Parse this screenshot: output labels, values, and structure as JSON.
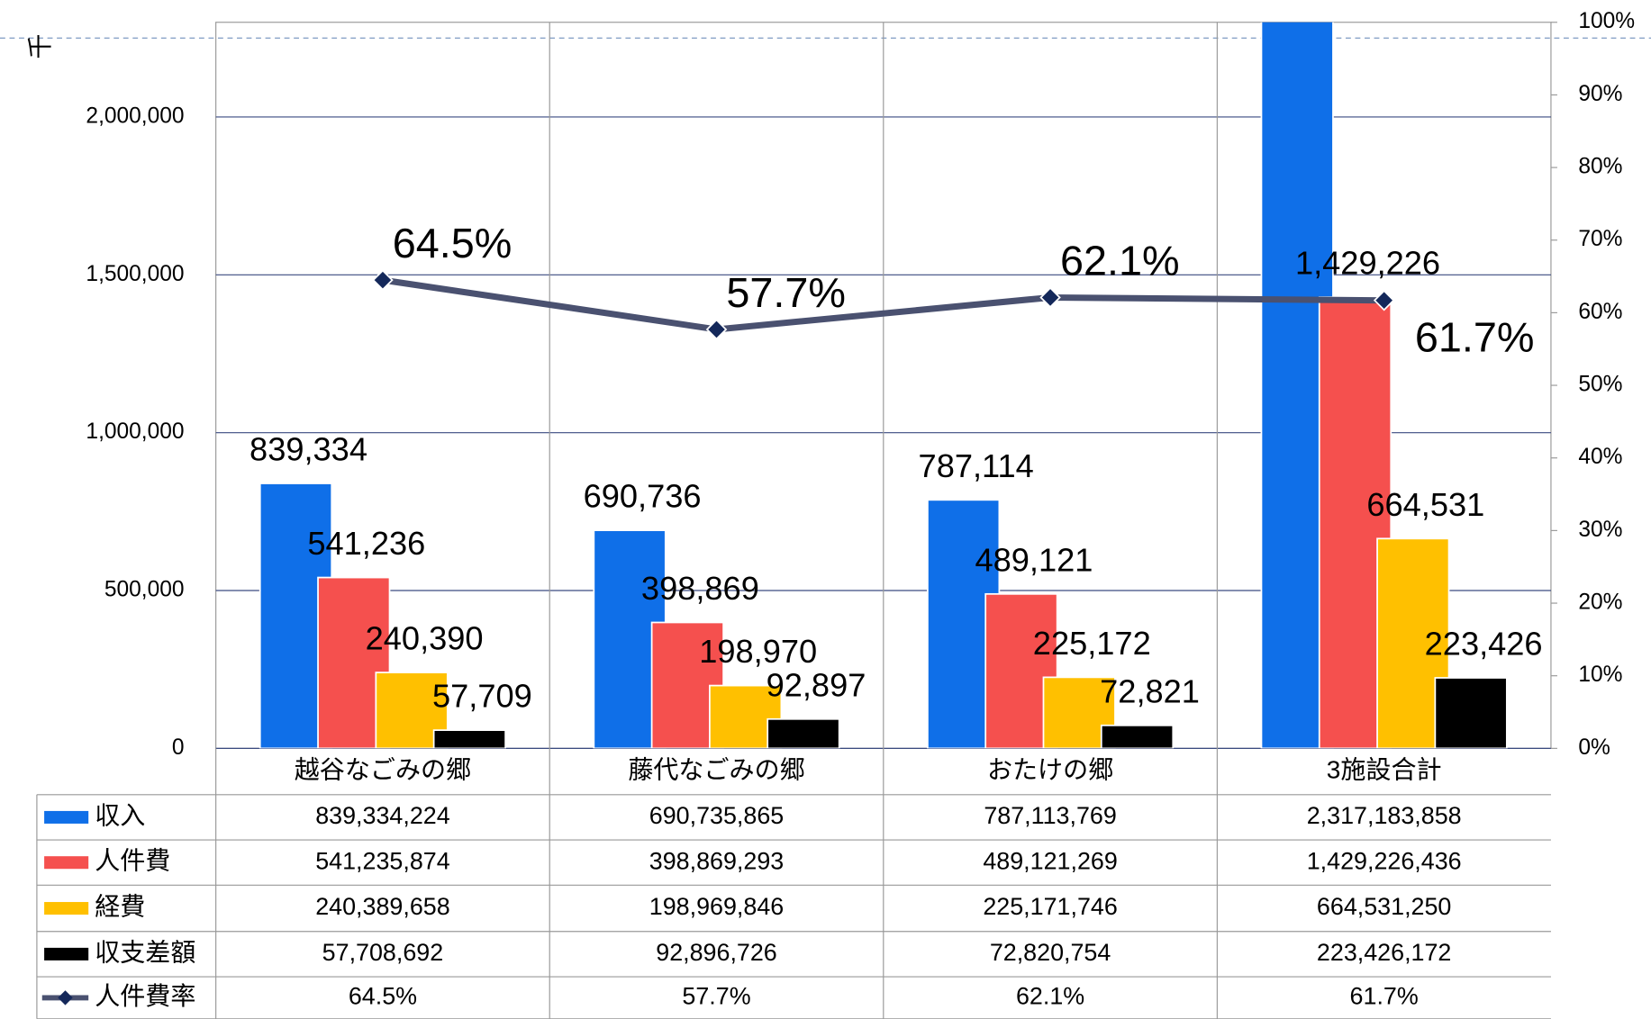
{
  "chart_data": {
    "type": "bar",
    "y_unit": "千",
    "categories": [
      "越谷なごみの郷",
      "藤代なごみの郷",
      "おたけの郷",
      "3施設合計"
    ],
    "series": [
      {
        "name": "収入",
        "color": "#0f6fe8",
        "values": [
          839334,
          690736,
          787114,
          2317184
        ],
        "value_labels": [
          "839,334",
          "690,736",
          "787,114",
          null
        ]
      },
      {
        "name": "人件費",
        "color": "#f5504e",
        "values": [
          541236,
          398869,
          489121,
          1429226
        ],
        "value_labels": [
          "541,236",
          "398,869",
          "489,121",
          "1,429,226"
        ]
      },
      {
        "name": "経費",
        "color": "#ffc000",
        "values": [
          240390,
          198970,
          225172,
          664531
        ],
        "value_labels": [
          "240,390",
          "198,970",
          "225,172",
          "664,531"
        ]
      },
      {
        "name": "収支差額",
        "color": "#000000",
        "values": [
          57709,
          92897,
          72821,
          223426
        ],
        "value_labels": [
          "57,709",
          "92,897",
          "72,821",
          "223,426"
        ]
      },
      {
        "name": "人件費率",
        "type": "line",
        "axis": "y2",
        "color": "#4a5170",
        "values": [
          64.5,
          57.7,
          62.1,
          61.7
        ],
        "value_labels": [
          "64.5%",
          "57.7%",
          "62.1%",
          "61.7%"
        ]
      }
    ],
    "ylim": [
      0,
      2300000
    ],
    "yticks": [
      0,
      {
        "value": 500000,
        "label": "500,000"
      },
      {
        "value": 1000000,
        "label": "1,000,000"
      },
      {
        "value": 1500000,
        "label": "1,500,000"
      },
      {
        "value": 2000000,
        "label": "2,000,000"
      }
    ],
    "y2lim": [
      0,
      100
    ],
    "y2ticks": [
      {
        "value": 0,
        "label": "0%"
      },
      {
        "value": 10,
        "label": "10%"
      },
      {
        "value": 20,
        "label": "20%"
      },
      {
        "value": 30,
        "label": "30%"
      },
      {
        "value": 40,
        "label": "40%"
      },
      {
        "value": 50,
        "label": "50%"
      },
      {
        "value": 60,
        "label": "60%"
      },
      {
        "value": 70,
        "label": "70%"
      },
      {
        "value": 80,
        "label": "80%"
      },
      {
        "value": 90,
        "label": "90%"
      },
      {
        "value": 100,
        "label": "100%"
      }
    ],
    "grid": true,
    "table": {
      "rows": [
        [
          "839,334,224",
          "690,735,865",
          "787,113,769",
          "2,317,183,858"
        ],
        [
          "541,235,874",
          "398,869,293",
          "489,121,269",
          "1,429,226,436"
        ],
        [
          "240,389,658",
          "198,969,846",
          "225,171,746",
          "664,531,250"
        ],
        [
          "57,708,692",
          "92,896,726",
          "72,820,754",
          "223,426,172"
        ],
        [
          "64.5%",
          "57.7%",
          "62.1%",
          "61.7%"
        ]
      ]
    }
  }
}
